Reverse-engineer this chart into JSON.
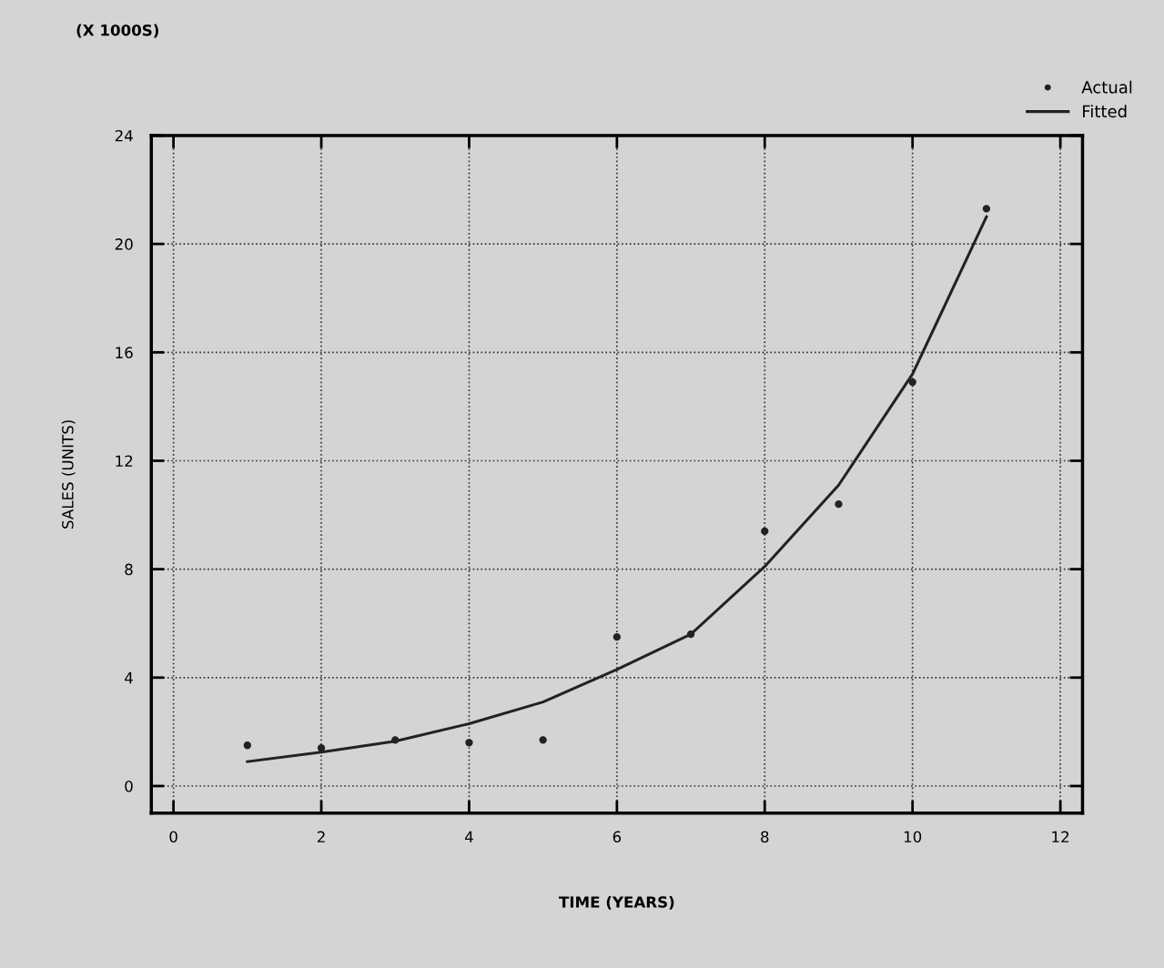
{
  "chart_data": {
    "type": "scatter",
    "xlabel": "TIME (YEARS)",
    "ylabel": "SALES (UNITS)",
    "annotations": [
      "(X 1000S)"
    ],
    "xlim": [
      -0.3,
      12.3
    ],
    "ylim": [
      -1,
      24
    ],
    "xticks": [
      0,
      2,
      4,
      6,
      8,
      10,
      12
    ],
    "yticks": [
      0,
      4,
      8,
      12,
      16,
      20,
      24
    ],
    "grid": true,
    "legend": "top right",
    "series": [
      {
        "name": "Actual",
        "marker": "circle",
        "color": "#222222",
        "x": [
          1,
          2,
          3,
          4,
          5,
          6,
          7,
          8,
          9,
          10,
          11
        ],
        "values": [
          1.5,
          1.4,
          1.7,
          1.6,
          1.7,
          5.5,
          5.6,
          9.4,
          10.4,
          14.9,
          21.3
        ]
      },
      {
        "name": "Fitted",
        "type": "line",
        "marker": "none",
        "color": "#222222",
        "x": [
          1,
          2,
          3,
          4,
          5,
          6,
          7,
          8,
          9,
          10,
          11
        ],
        "values": [
          0.9,
          1.25,
          1.65,
          2.3,
          3.1,
          4.3,
          5.6,
          8.1,
          11.1,
          15.2,
          21.0
        ]
      }
    ]
  }
}
